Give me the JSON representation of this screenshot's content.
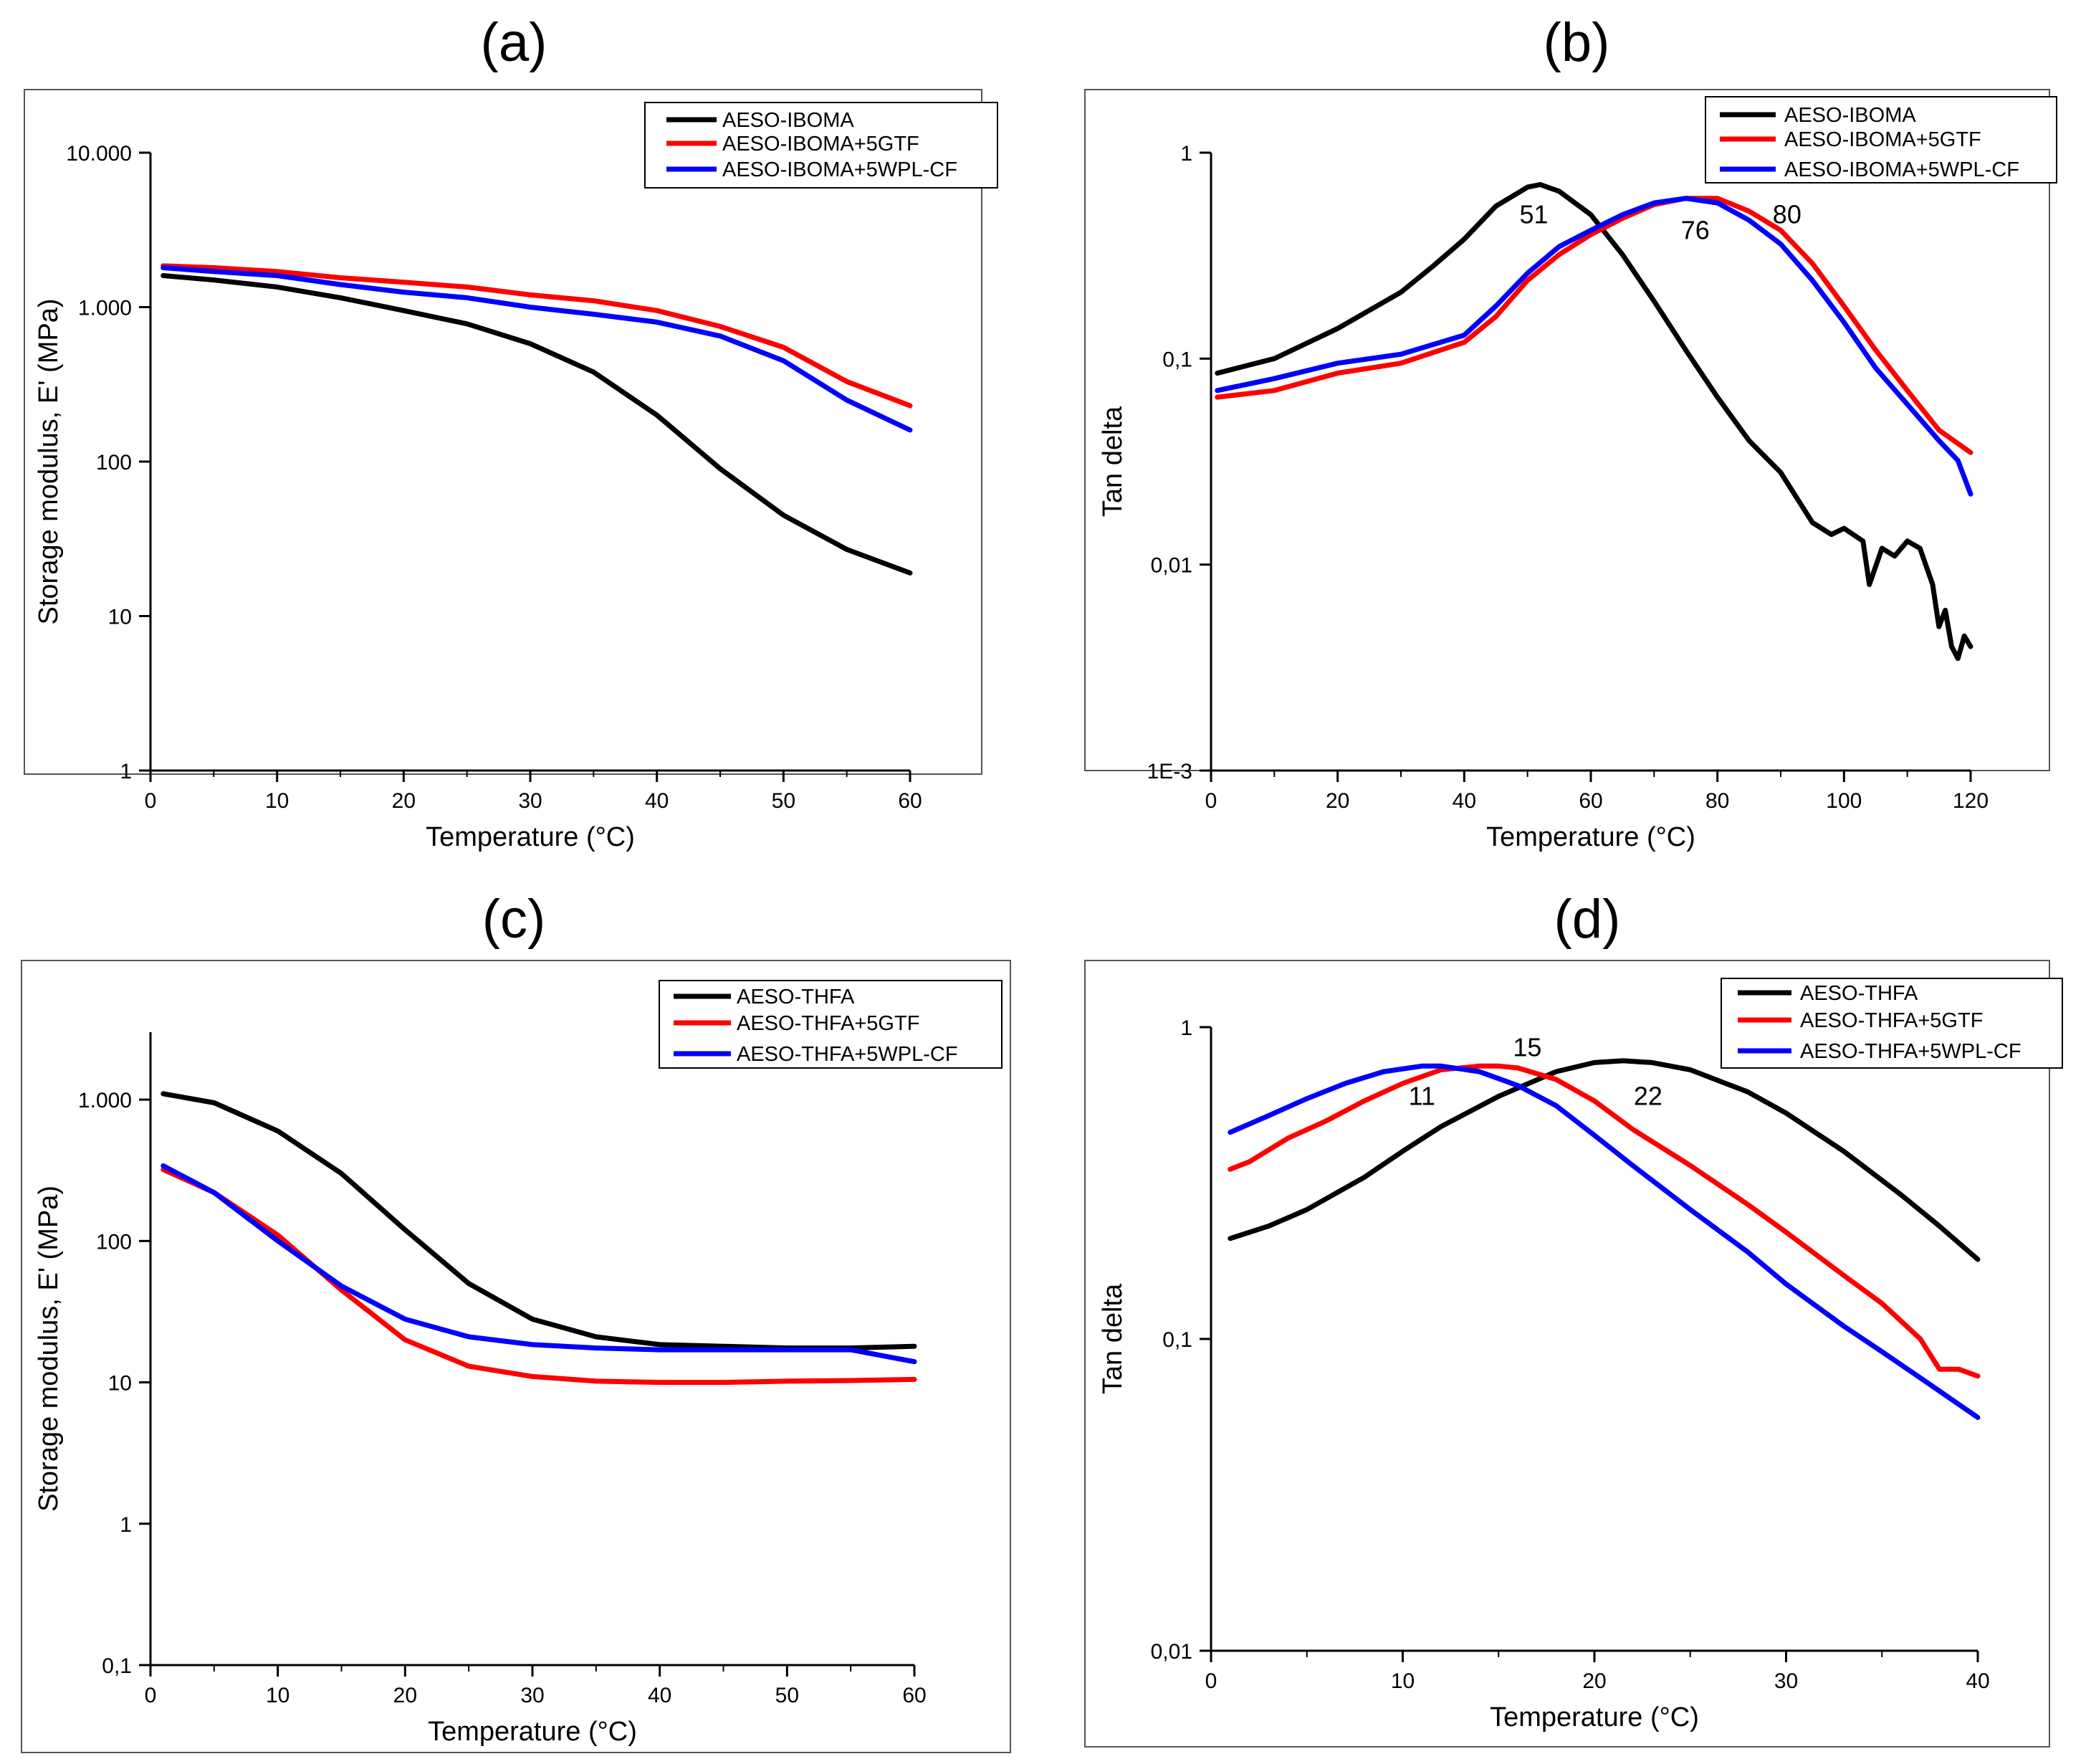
{
  "figure": {
    "colors": {
      "axis": "#000000",
      "frame": "#555555",
      "black": "#000000",
      "red": "#ff0000",
      "blue": "#0000ff"
    }
  },
  "chart_data": [
    {
      "panel_label": "(a)",
      "type": "line",
      "xlabel": "Temperature (°C)",
      "ylabel": "Storage modulus, E' (MPa)",
      "xlim": [
        0,
        60
      ],
      "ylim": [
        1,
        10000
      ],
      "yscale": "log",
      "grid": false,
      "legend_position": "top-right",
      "xticks": [
        0,
        10,
        20,
        30,
        40,
        50,
        60
      ],
      "xtick_labels": [
        "0",
        "10",
        "20",
        "30",
        "40",
        "50",
        "60"
      ],
      "yticks": [
        1,
        10,
        100,
        1000,
        10000
      ],
      "ytick_labels": [
        "1",
        "10",
        "100",
        "1.000",
        "10.000"
      ],
      "series": [
        {
          "name": "AESO-IBOMA",
          "color": "#000000",
          "x": [
            1,
            5,
            10,
            15,
            20,
            25,
            30,
            35,
            40,
            45,
            50,
            55,
            60
          ],
          "y": [
            1600,
            1500,
            1350,
            1150,
            950,
            780,
            580,
            380,
            200,
            90,
            45,
            27,
            19
          ]
        },
        {
          "name": "AESO-IBOMA+5GTF",
          "color": "#ff0000",
          "x": [
            1,
            5,
            10,
            15,
            20,
            25,
            30,
            35,
            40,
            45,
            50,
            55,
            60
          ],
          "y": [
            1850,
            1800,
            1700,
            1550,
            1450,
            1350,
            1200,
            1100,
            950,
            750,
            550,
            330,
            230
          ]
        },
        {
          "name": "AESO-IBOMA+5WPL-CF",
          "color": "#0000ff",
          "x": [
            1,
            5,
            10,
            15,
            20,
            25,
            30,
            35,
            40,
            45,
            50,
            55,
            60
          ],
          "y": [
            1800,
            1700,
            1600,
            1400,
            1250,
            1150,
            1000,
            900,
            800,
            650,
            450,
            250,
            160
          ]
        }
      ],
      "annotations": []
    },
    {
      "panel_label": "(b)",
      "type": "line",
      "xlabel": "Temperature (°C)",
      "ylabel": "Tan delta",
      "xlim": [
        0,
        120
      ],
      "ylim": [
        0.001,
        1
      ],
      "yscale": "log",
      "grid": false,
      "legend_position": "top-right",
      "xticks": [
        0,
        20,
        40,
        60,
        80,
        100,
        120
      ],
      "xtick_labels": [
        "0",
        "20",
        "40",
        "60",
        "80",
        "100",
        "120"
      ],
      "yticks": [
        0.001,
        0.01,
        0.1,
        1
      ],
      "ytick_labels": [
        "1E-3",
        "0,01",
        "0,1",
        "1"
      ],
      "series": [
        {
          "name": "AESO-IBOMA",
          "color": "#000000",
          "x": [
            1,
            10,
            20,
            30,
            35,
            40,
            45,
            50,
            52,
            55,
            60,
            65,
            70,
            75,
            80,
            85,
            90,
            95,
            98,
            100,
            103,
            104,
            106,
            108,
            110,
            112,
            114,
            115,
            116,
            117,
            118,
            119,
            120
          ],
          "y": [
            0.085,
            0.1,
            0.14,
            0.21,
            0.28,
            0.38,
            0.55,
            0.68,
            0.7,
            0.65,
            0.5,
            0.32,
            0.19,
            0.11,
            0.065,
            0.04,
            0.028,
            0.016,
            0.014,
            0.015,
            0.013,
            0.008,
            0.012,
            0.011,
            0.013,
            0.012,
            0.008,
            0.005,
            0.006,
            0.004,
            0.0035,
            0.0045,
            0.004
          ]
        },
        {
          "name": "AESO-IBOMA+5GTF",
          "color": "#ff0000",
          "x": [
            1,
            10,
            20,
            30,
            40,
            45,
            50,
            55,
            60,
            65,
            70,
            75,
            80,
            85,
            90,
            95,
            100,
            105,
            110,
            115,
            120
          ],
          "y": [
            0.065,
            0.07,
            0.085,
            0.095,
            0.12,
            0.16,
            0.24,
            0.32,
            0.4,
            0.48,
            0.56,
            0.6,
            0.6,
            0.52,
            0.42,
            0.29,
            0.18,
            0.11,
            0.07,
            0.045,
            0.035
          ]
        },
        {
          "name": "AESO-IBOMA+5WPL-CF",
          "color": "#0000ff",
          "x": [
            1,
            10,
            20,
            30,
            40,
            45,
            50,
            55,
            60,
            65,
            70,
            75,
            80,
            85,
            90,
            95,
            100,
            105,
            110,
            115,
            118,
            120
          ],
          "y": [
            0.07,
            0.08,
            0.095,
            0.105,
            0.13,
            0.18,
            0.26,
            0.35,
            0.42,
            0.5,
            0.57,
            0.6,
            0.57,
            0.47,
            0.36,
            0.24,
            0.15,
            0.09,
            0.06,
            0.04,
            0.032,
            0.022
          ]
        }
      ],
      "annotations": [
        {
          "text": "51",
          "x": 51,
          "y": 0.5
        },
        {
          "text": "76",
          "x": 76.5,
          "y": 0.42
        },
        {
          "text": "80",
          "x": 91,
          "y": 0.5
        }
      ]
    },
    {
      "panel_label": "(c)",
      "type": "line",
      "xlabel": "Temperature (°C)",
      "ylabel": "Storage modulus, E' (MPa)",
      "xlim": [
        0,
        60
      ],
      "ylim": [
        0.1,
        3000
      ],
      "yscale": "log",
      "grid": false,
      "legend_position": "top-right",
      "xticks": [
        0,
        10,
        20,
        30,
        40,
        50,
        60
      ],
      "xtick_labels": [
        "0",
        "10",
        "20",
        "30",
        "40",
        "50",
        "60"
      ],
      "yticks": [
        0.1,
        1,
        10,
        100,
        1000
      ],
      "ytick_labels": [
        "0,1",
        "1",
        "10",
        "100",
        "1.000"
      ],
      "series": [
        {
          "name": "AESO-THFA",
          "color": "#000000",
          "x": [
            1,
            5,
            10,
            15,
            20,
            25,
            30,
            35,
            40,
            45,
            50,
            55,
            60
          ],
          "y": [
            1100,
            950,
            600,
            300,
            120,
            50,
            28,
            21,
            18.5,
            18,
            17.5,
            17.5,
            18
          ]
        },
        {
          "name": "AESO-THFA+5GTF",
          "color": "#ff0000",
          "x": [
            1,
            5,
            10,
            15,
            20,
            25,
            30,
            35,
            40,
            45,
            50,
            55,
            60
          ],
          "y": [
            320,
            220,
            110,
            45,
            20,
            13,
            11,
            10.2,
            10,
            10,
            10.2,
            10.3,
            10.5
          ]
        },
        {
          "name": "AESO-THFA+5WPL-CF",
          "color": "#0000ff",
          "x": [
            1,
            5,
            10,
            15,
            20,
            25,
            30,
            35,
            40,
            45,
            50,
            55,
            60
          ],
          "y": [
            340,
            220,
            100,
            48,
            28,
            21,
            18.5,
            17.5,
            17,
            17,
            17,
            17,
            14
          ]
        }
      ],
      "annotations": []
    },
    {
      "panel_label": "(d)",
      "type": "line",
      "xlabel": "Temperature (°C)",
      "ylabel": "Tan delta",
      "xlim": [
        0,
        40
      ],
      "ylim": [
        0.01,
        1
      ],
      "yscale": "log",
      "grid": false,
      "legend_position": "top-right",
      "xticks": [
        0,
        10,
        20,
        30,
        40
      ],
      "xtick_labels": [
        "0",
        "10",
        "20",
        "30",
        "40"
      ],
      "yticks": [
        0.01,
        0.1,
        1
      ],
      "ytick_labels": [
        "0,01",
        "0,1",
        "1"
      ],
      "series": [
        {
          "name": "AESO-THFA",
          "color": "#000000",
          "x": [
            1,
            3,
            5,
            8,
            10,
            12,
            15,
            18,
            20,
            21.5,
            23,
            25,
            28,
            30,
            33,
            36,
            38,
            40
          ],
          "y": [
            0.21,
            0.23,
            0.26,
            0.33,
            0.4,
            0.48,
            0.6,
            0.72,
            0.77,
            0.78,
            0.77,
            0.73,
            0.62,
            0.53,
            0.4,
            0.29,
            0.23,
            0.18
          ]
        },
        {
          "name": "AESO-THFA+5GTF",
          "color": "#ff0000",
          "x": [
            1,
            2,
            4,
            6,
            8,
            10,
            12,
            14,
            15,
            16,
            18,
            20,
            22,
            25,
            28,
            30,
            33,
            35,
            37,
            38,
            39,
            40
          ],
          "y": [
            0.35,
            0.37,
            0.44,
            0.5,
            0.58,
            0.66,
            0.73,
            0.75,
            0.75,
            0.74,
            0.68,
            0.58,
            0.47,
            0.36,
            0.27,
            0.22,
            0.16,
            0.13,
            0.1,
            0.08,
            0.08,
            0.076
          ]
        },
        {
          "name": "AESO-THFA+5WPL-CF",
          "color": "#0000ff",
          "x": [
            1,
            3,
            5,
            7,
            9,
            11,
            12,
            14,
            16,
            18,
            20,
            22,
            25,
            28,
            30,
            33,
            35,
            37,
            40
          ],
          "y": [
            0.46,
            0.52,
            0.59,
            0.66,
            0.72,
            0.75,
            0.75,
            0.72,
            0.65,
            0.56,
            0.45,
            0.36,
            0.26,
            0.19,
            0.15,
            0.11,
            0.091,
            0.075,
            0.056
          ]
        }
      ],
      "annotations": [
        {
          "text": "11",
          "x": 11,
          "y": 0.6
        },
        {
          "text": "15",
          "x": 16.5,
          "y": 0.86
        },
        {
          "text": "22",
          "x": 22.8,
          "y": 0.6
        }
      ]
    }
  ]
}
